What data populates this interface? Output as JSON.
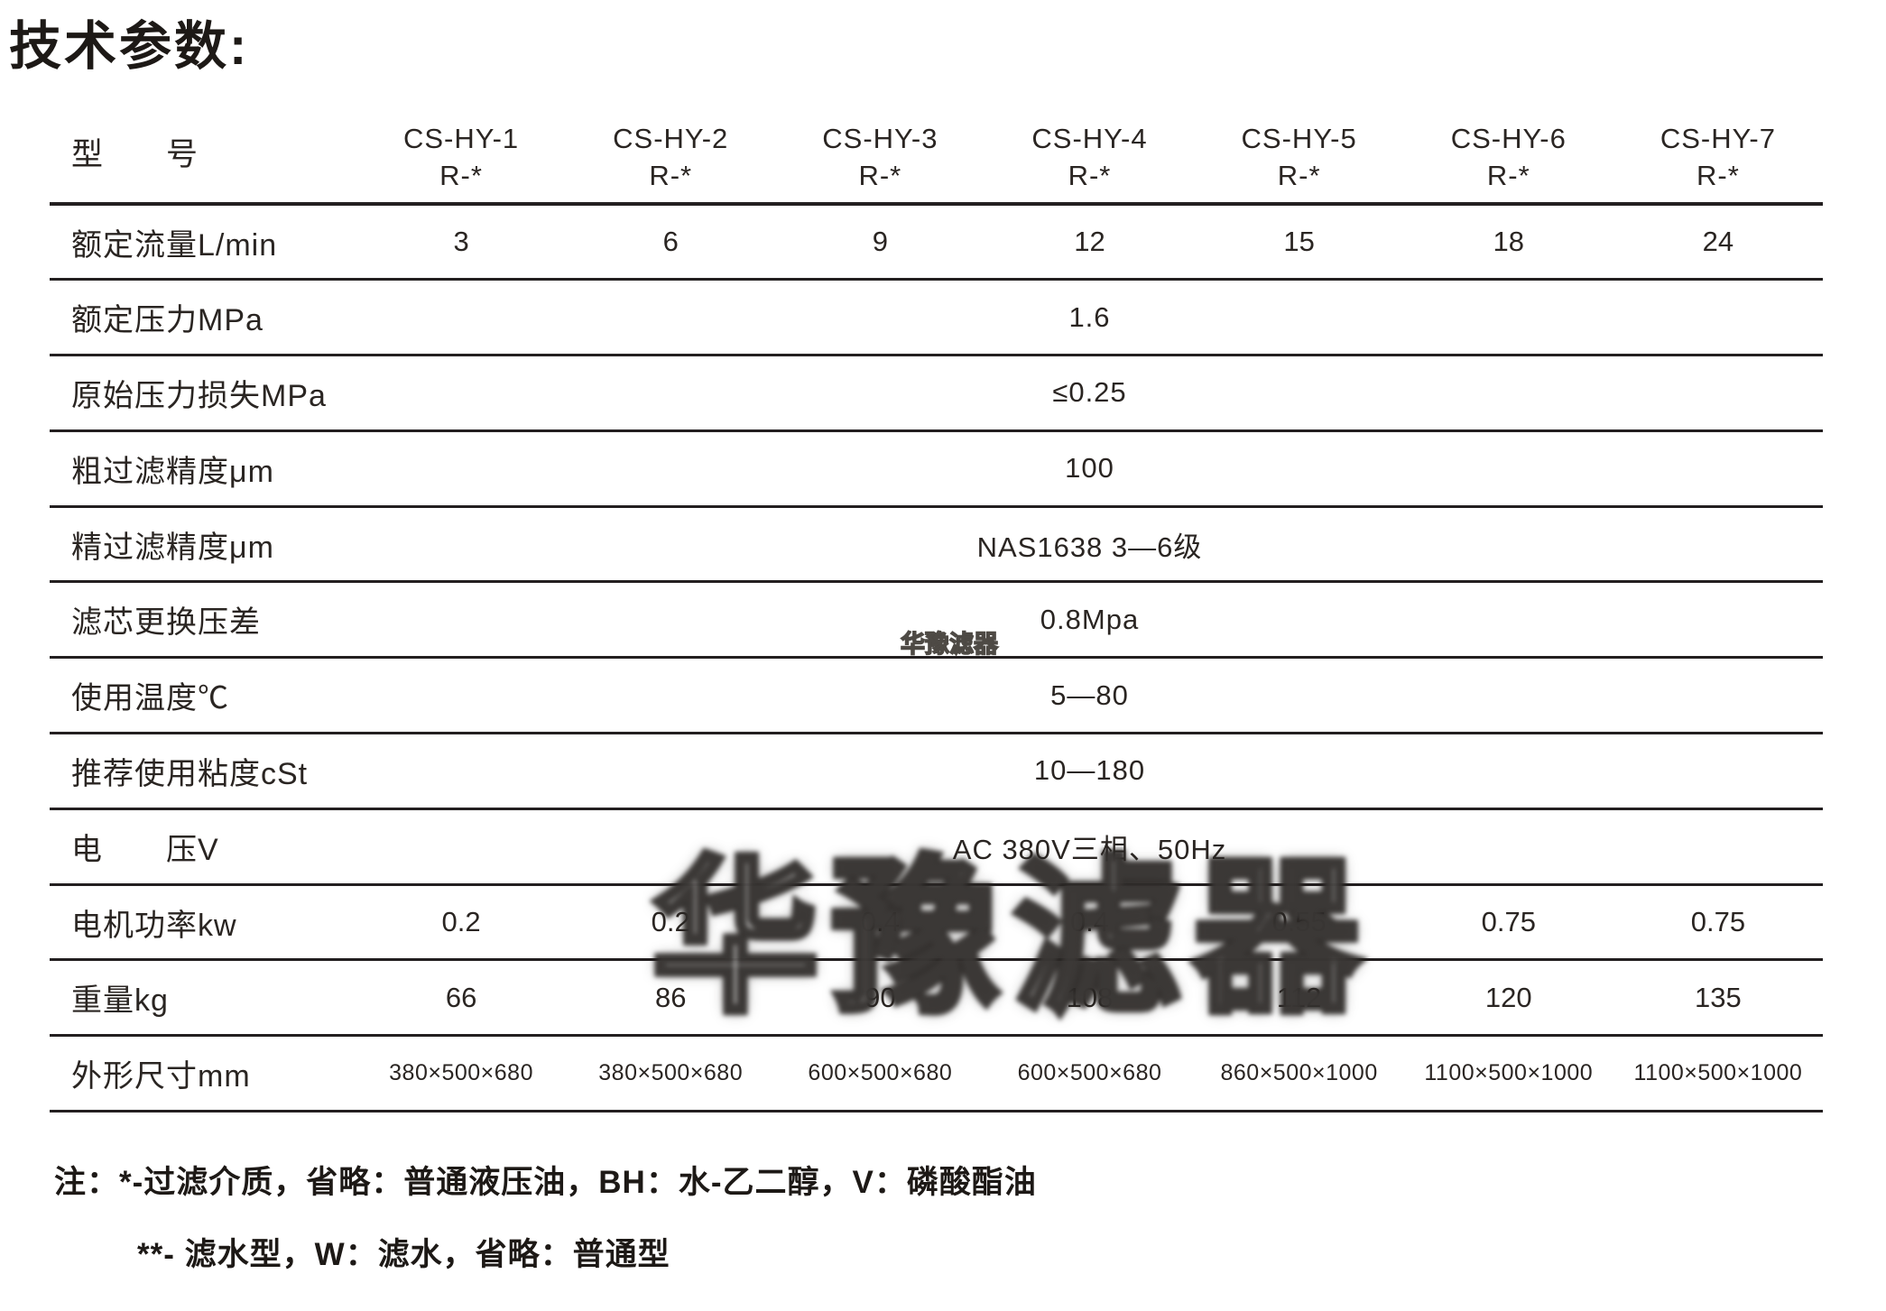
{
  "page_title": "技术参数:",
  "table": {
    "model_row_label": "型　　号",
    "models": [
      {
        "name": "CS-HY-1",
        "sub": "R-*"
      },
      {
        "name": "CS-HY-2",
        "sub": "R-*"
      },
      {
        "name": "CS-HY-3",
        "sub": "R-*"
      },
      {
        "name": "CS-HY-4",
        "sub": "R-*"
      },
      {
        "name": "CS-HY-5",
        "sub": "R-*"
      },
      {
        "name": "CS-HY-6",
        "sub": "R-*"
      },
      {
        "name": "CS-HY-7",
        "sub": "R-*"
      }
    ],
    "rows": [
      {
        "label": "额定流量L/min",
        "values": [
          "3",
          "6",
          "9",
          "12",
          "15",
          "18",
          "24"
        ]
      },
      {
        "label": "额定压力MPa",
        "value": "1.6"
      },
      {
        "label": "原始压力损失MPa",
        "value": "≤0.25"
      },
      {
        "label": "粗过滤精度μm",
        "value": "100"
      },
      {
        "label": "精过滤精度μm",
        "value": "NAS1638 3—6级"
      },
      {
        "label": "滤芯更换压差",
        "value": "0.8Mpa"
      },
      {
        "label": "使用温度℃",
        "value": "5—80"
      },
      {
        "label": "推荐使用粘度cSt",
        "value": "10—180"
      },
      {
        "label": "电　　压V",
        "value": "AC 380V三相、50Hz"
      },
      {
        "label": "电机功率kw",
        "values": [
          "0.2",
          "0.2",
          "0.4",
          "0.4",
          "0.55",
          "0.75",
          "0.75"
        ]
      },
      {
        "label": "重量kg",
        "values": [
          "66",
          "86",
          "90",
          "108",
          "112",
          "120",
          "135"
        ]
      },
      {
        "label": "外形尺寸mm",
        "small": true,
        "values": [
          "380×500×680",
          "380×500×680",
          "600×500×680",
          "600×500×680",
          "860×500×1000",
          "1100×500×1000",
          "1100×500×1000"
        ]
      }
    ]
  },
  "notes": {
    "line1": "注：*-过滤介质，省略：普通液压油，BH：水-乙二醇，V：磷酸酯油",
    "line2": "**- 滤水型，W：滤水，省略：普通型"
  },
  "watermark": {
    "small": "华豫滤器",
    "large": "华豫滤器"
  },
  "colors": {
    "text": "#2a2522",
    "line": "#231f20",
    "background": "#ffffff"
  }
}
